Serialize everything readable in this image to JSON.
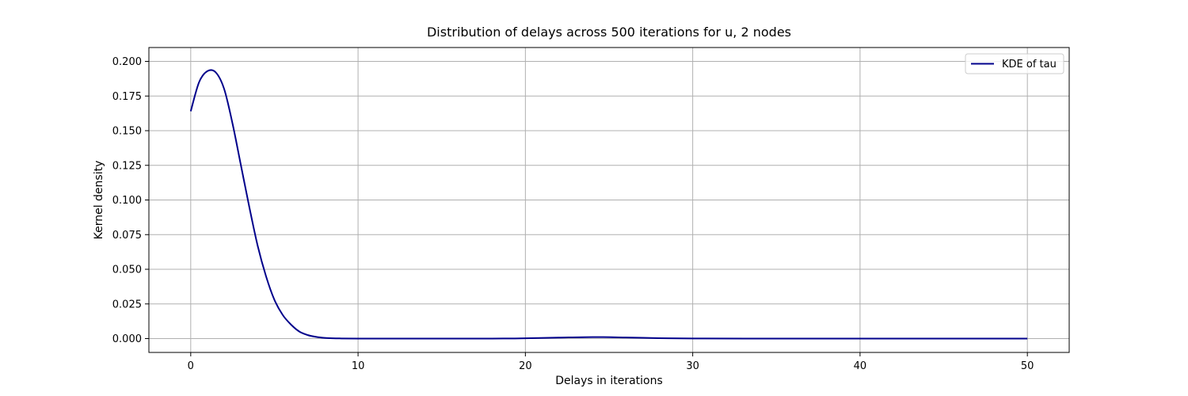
{
  "chart_data": {
    "type": "line",
    "title": "Distribution of delays across 500 iterations for u, 2 nodes",
    "xlabel": "Delays in iterations",
    "ylabel": "Kernel density",
    "xlim": [
      -2.5,
      52.5
    ],
    "ylim": [
      -0.01,
      0.21
    ],
    "xticks": [
      0,
      10,
      20,
      30,
      40,
      50
    ],
    "xtick_labels": [
      "0",
      "10",
      "20",
      "30",
      "40",
      "50"
    ],
    "yticks": [
      0,
      0.025,
      0.05,
      0.075,
      0.1,
      0.125,
      0.15,
      0.175,
      0.2
    ],
    "ytick_labels": [
      "0.000",
      "0.025",
      "0.050",
      "0.075",
      "0.100",
      "0.125",
      "0.150",
      "0.175",
      "0.200"
    ],
    "grid": true,
    "legend_position": "upper right",
    "series": [
      {
        "name": "KDE of tau",
        "color": "#00008b",
        "x": [
          0,
          0.5,
          1,
          1.5,
          2,
          2.5,
          3,
          3.5,
          4,
          4.5,
          5,
          5.5,
          6,
          6.5,
          7,
          7.5,
          8,
          8.5,
          9,
          10,
          12,
          15,
          18,
          20,
          22,
          24,
          26,
          28,
          30,
          35,
          40,
          45,
          50
        ],
        "y": [
          0.164,
          0.185,
          0.193,
          0.192,
          0.18,
          0.155,
          0.125,
          0.095,
          0.067,
          0.045,
          0.028,
          0.017,
          0.01,
          0.005,
          0.0025,
          0.0012,
          0.0005,
          0.0002,
          0.0001,
          0.0,
          0.0,
          0.0,
          0.0,
          0.0002,
          0.0007,
          0.0011,
          0.0008,
          0.0003,
          0.0001,
          0.0,
          0.0,
          0.0,
          0.0
        ]
      }
    ]
  }
}
